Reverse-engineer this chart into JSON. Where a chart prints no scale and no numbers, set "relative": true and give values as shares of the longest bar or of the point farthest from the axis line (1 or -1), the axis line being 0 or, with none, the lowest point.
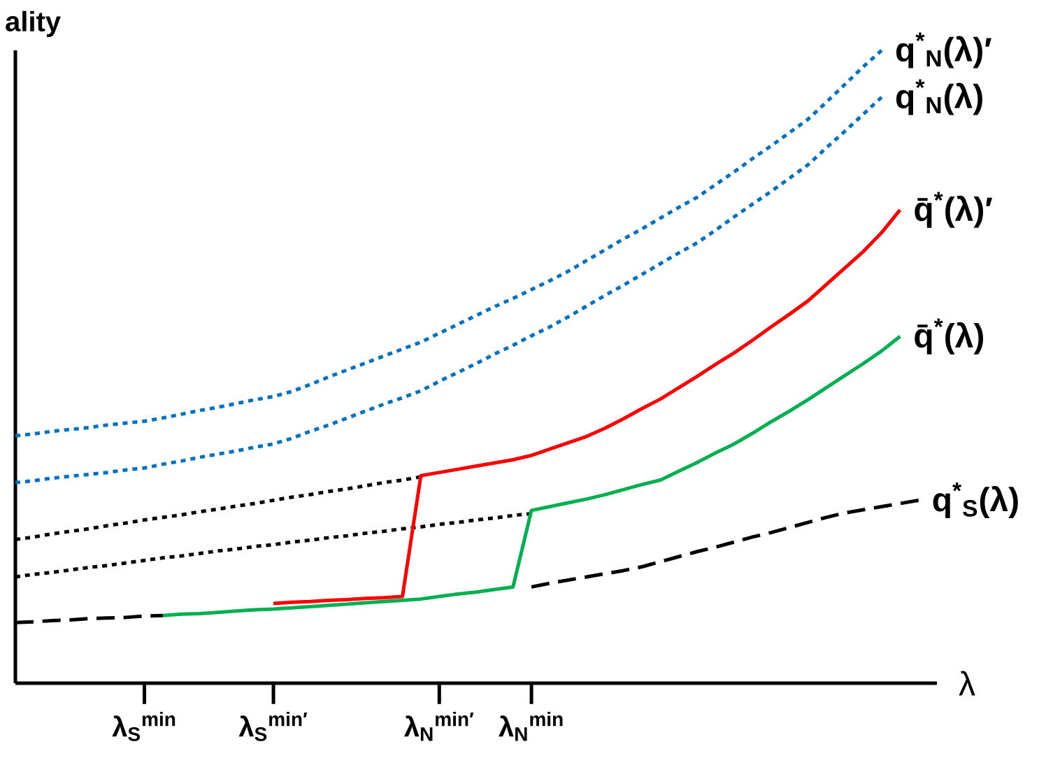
{
  "chart_data": {
    "type": "line",
    "relative": true,
    "xlabel": "λ",
    "ylabel": "ality",
    "categories": [
      null,
      null,
      null,
      null,
      null,
      null,
      null,
      "λ$_{S}$$^{min}$",
      null,
      null,
      null,
      null,
      null,
      null,
      "λ$_{S}$$^{min′}$",
      null,
      null,
      null,
      null,
      null,
      null,
      null,
      null,
      "λ$_{N}$$^{min′}$",
      null,
      null,
      null,
      null,
      "λ$_{N}$$^{min}$",
      null,
      null,
      null,
      null,
      null,
      null,
      null,
      null,
      null,
      null,
      null,
      null,
      null,
      null,
      null,
      null,
      null,
      null,
      null,
      null,
      null,
      null
    ],
    "series": [
      {
        "name": "q$^{*}$$_{N}$(λ)′",
        "color": "#0070c0",
        "line_style": "dotted",
        "values": [
          0.391,
          0.394,
          0.398,
          0.401,
          0.404,
          0.408,
          0.411,
          0.414,
          0.419,
          0.425,
          0.431,
          0.436,
          0.442,
          0.448,
          0.453,
          0.461,
          0.472,
          0.484,
          0.495,
          0.506,
          0.517,
          0.528,
          0.539,
          0.553,
          0.567,
          0.581,
          0.595,
          0.608,
          0.622,
          0.636,
          0.651,
          0.668,
          0.685,
          0.702,
          0.718,
          0.735,
          0.752,
          0.768,
          0.788,
          0.808,
          0.829,
          0.849,
          0.87,
          0.891,
          0.918,
          0.946,
          0.974,
          1.0,
          null,
          null,
          null
        ]
      },
      {
        "name": "q$^{*}$$_{N}$(λ)",
        "color": "#0070c0",
        "line_style": "dotted",
        "values": [
          0.317,
          0.32,
          0.324,
          0.327,
          0.33,
          0.333,
          0.337,
          0.34,
          0.346,
          0.351,
          0.357,
          0.362,
          0.367,
          0.373,
          0.378,
          0.387,
          0.398,
          0.408,
          0.419,
          0.43,
          0.441,
          0.451,
          0.462,
          0.477,
          0.491,
          0.505,
          0.52,
          0.534,
          0.549,
          0.563,
          0.579,
          0.596,
          0.613,
          0.629,
          0.646,
          0.663,
          0.68,
          0.696,
          0.716,
          0.737,
          0.757,
          0.777,
          0.798,
          0.819,
          0.846,
          0.872,
          0.899,
          0.926,
          null,
          null,
          null
        ]
      },
      {
        "color": "#000000",
        "line_style": "dotted",
        "values": [
          0.227,
          0.231,
          0.236,
          0.24,
          0.244,
          0.249,
          0.253,
          0.258,
          0.262,
          0.266,
          0.271,
          0.275,
          0.28,
          0.284,
          0.289,
          0.294,
          0.298,
          0.303,
          0.307,
          0.312,
          0.317,
          0.321,
          0.326,
          null,
          null,
          null,
          null,
          null,
          null,
          null,
          null,
          null,
          null,
          null,
          null,
          null,
          null,
          null,
          null,
          null,
          null,
          null,
          null,
          null,
          null,
          null,
          null,
          null,
          null,
          null,
          null
        ]
      },
      {
        "color": "#000000",
        "line_style": "dotted",
        "values": [
          0.168,
          0.172,
          0.175,
          0.179,
          0.183,
          0.186,
          0.19,
          0.194,
          0.198,
          0.201,
          0.205,
          0.209,
          0.212,
          0.216,
          0.219,
          0.223,
          0.226,
          0.23,
          0.233,
          0.237,
          0.24,
          0.244,
          0.247,
          0.251,
          0.254,
          0.258,
          0.261,
          0.265,
          0.268,
          null,
          null,
          null,
          null,
          null,
          null,
          null,
          null,
          null,
          null,
          null,
          null,
          null,
          null,
          null,
          null,
          null,
          null,
          null,
          null,
          null,
          null
        ]
      },
      {
        "name": "q̄$^{*}$(λ)′",
        "color": "#ff0000",
        "line_style": "solid",
        "values": [
          null,
          null,
          null,
          null,
          null,
          null,
          null,
          null,
          null,
          null,
          null,
          null,
          null,
          null,
          0.126,
          0.128,
          0.129,
          0.131,
          0.132,
          0.134,
          0.135,
          0.137,
          0.328,
          0.333,
          0.338,
          0.343,
          0.348,
          0.353,
          0.36,
          0.37,
          0.38,
          0.39,
          0.403,
          0.418,
          0.434,
          0.449,
          0.467,
          0.485,
          0.504,
          0.522,
          0.542,
          0.563,
          0.583,
          0.604,
          0.63,
          0.656,
          0.682,
          0.712,
          0.748,
          null,
          null
        ]
      },
      {
        "name": "q$^{*}$$_{S}$(λ)",
        "color": "#000000",
        "line_style": "dashed",
        "values": [
          0.096,
          0.097,
          0.099,
          0.1,
          0.102,
          0.103,
          0.104,
          0.106,
          0.107,
          null,
          null,
          null,
          null,
          null,
          null,
          null,
          null,
          null,
          null,
          null,
          null,
          null,
          null,
          null,
          null,
          null,
          null,
          null,
          0.152,
          0.158,
          0.163,
          0.168,
          0.173,
          0.178,
          0.184,
          0.192,
          0.2,
          0.208,
          0.215,
          0.223,
          0.231,
          0.238,
          0.246,
          0.254,
          0.262,
          0.269,
          0.274,
          0.279,
          0.284,
          0.289,
          null
        ]
      },
      {
        "name": "q̄$^{*}$(λ)",
        "color": "#00b050",
        "line_style": "solid",
        "values": [
          null,
          null,
          null,
          null,
          null,
          null,
          null,
          null,
          0.107,
          0.109,
          0.11,
          0.112,
          0.114,
          0.116,
          0.117,
          0.119,
          0.121,
          0.123,
          0.125,
          0.127,
          0.129,
          0.131,
          0.133,
          0.137,
          0.141,
          0.144,
          0.148,
          0.152,
          0.273,
          0.279,
          0.285,
          0.291,
          0.298,
          0.306,
          0.314,
          0.321,
          0.335,
          0.349,
          0.364,
          0.378,
          0.395,
          0.413,
          0.43,
          0.448,
          0.467,
          0.486,
          0.505,
          0.525,
          0.548,
          null,
          null
        ]
      }
    ]
  }
}
